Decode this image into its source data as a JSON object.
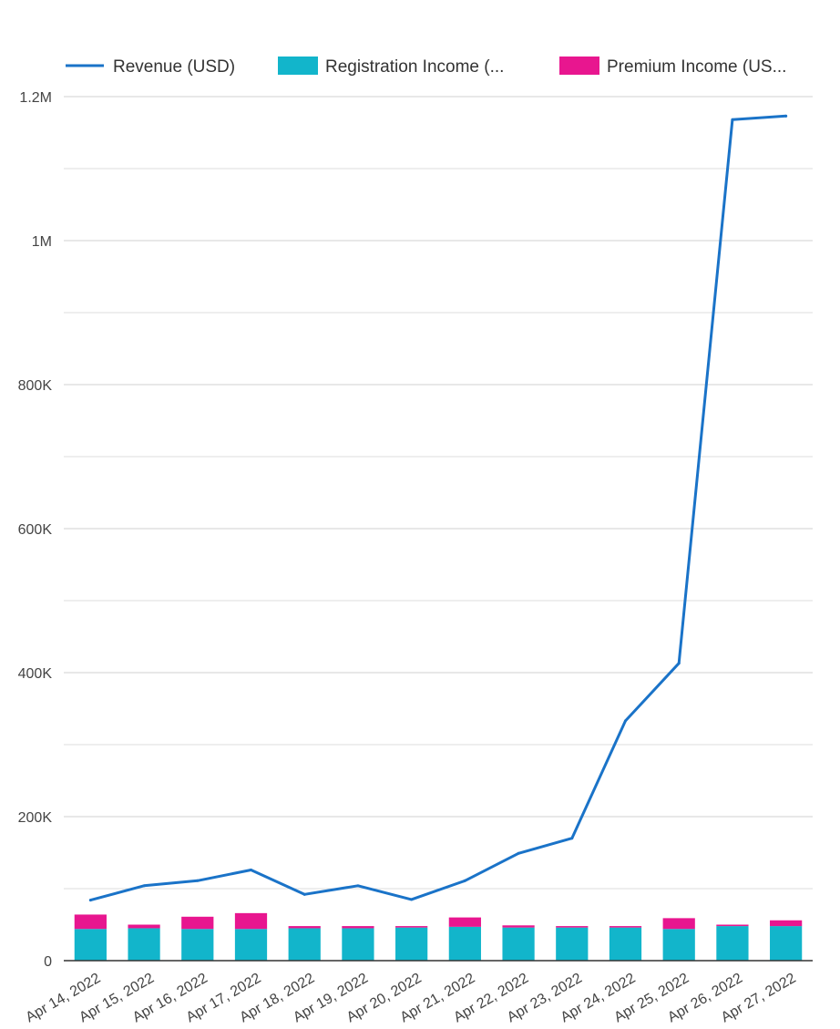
{
  "chart_data": {
    "type": "bar",
    "categories": [
      "Apr 14, 2022",
      "Apr 15, 2022",
      "Apr 16, 2022",
      "Apr 17, 2022",
      "Apr 18, 2022",
      "Apr 19, 2022",
      "Apr 20, 2022",
      "Apr 21, 2022",
      "Apr 22, 2022",
      "Apr 23, 2022",
      "Apr 24, 2022",
      "Apr 25, 2022",
      "Apr 26, 2022",
      "Apr 27, 2022"
    ],
    "series": [
      {
        "name": "Revenue (USD)",
        "kind": "line",
        "color": "#1a73c8",
        "values": [
          84000,
          104000,
          111000,
          126000,
          92000,
          104000,
          85000,
          111000,
          149000,
          170000,
          333000,
          413000,
          1168000,
          1173000
        ]
      },
      {
        "name": "Registration Income (...",
        "kind": "bar",
        "stack": "income",
        "color": "#12b5cb",
        "values": [
          44000,
          45000,
          44000,
          44000,
          45000,
          45000,
          46000,
          47000,
          46000,
          46000,
          46000,
          44000,
          48000,
          48000
        ]
      },
      {
        "name": "Premium Income (US...",
        "kind": "bar",
        "stack": "income",
        "color": "#e8168f",
        "values": [
          20000,
          5000,
          17000,
          22000,
          3000,
          3000,
          2000,
          13000,
          3000,
          2000,
          2000,
          15000,
          2000,
          8000
        ]
      }
    ],
    "ylim": [
      0,
      1200000
    ],
    "yticks": [
      {
        "value": 0,
        "label": "0"
      },
      {
        "value": 200000,
        "label": "200K"
      },
      {
        "value": 400000,
        "label": "400K"
      },
      {
        "value": 600000,
        "label": "600K"
      },
      {
        "value": 800000,
        "label": "800K"
      },
      {
        "value": 1000000,
        "label": "1M"
      },
      {
        "value": 1200000,
        "label": "1.2M"
      }
    ],
    "minor_grid": [
      100000,
      300000,
      500000,
      700000,
      900000,
      1100000
    ],
    "grid": true,
    "legend_position": "top",
    "title": "",
    "xlabel": "",
    "ylabel": ""
  }
}
